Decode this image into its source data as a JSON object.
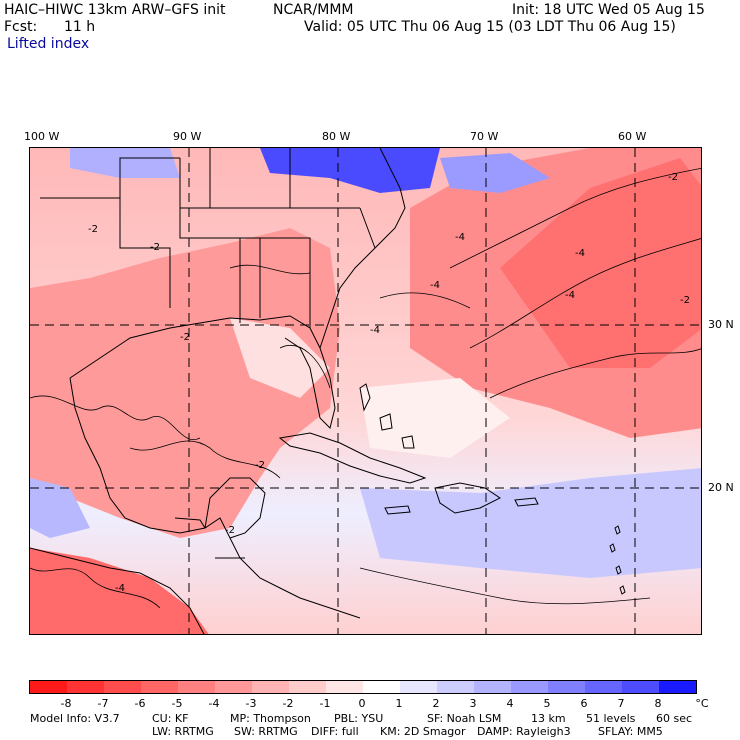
{
  "header": {
    "model": "HAIC–HIWC 13km ARW–GFS init",
    "org": "NCAR/MMM",
    "init": "Init: 18 UTC Wed 05 Aug 15",
    "fcst_label": "Fcst:",
    "fcst_value": "11 h",
    "valid": "Valid: 05 UTC Thu 06 Aug 15 (03 LDT Thu 06 Aug 15)",
    "field": "Lifted index"
  },
  "map": {
    "lon_labels": [
      "100 W",
      "90 W",
      "80 W",
      "70 W",
      "60 W"
    ],
    "lat_labels": [
      "30 N",
      "20 N"
    ],
    "contour_labels": [
      "-2",
      "-2",
      "-2",
      "-4",
      "-4",
      "-4",
      "-4",
      "-2",
      "-4",
      "-2",
      "-2",
      "-2",
      "-4"
    ],
    "colors": {
      "land_outline": "#000000",
      "grid_dash": "#000000"
    }
  },
  "colorbar": {
    "labels": [
      "-8",
      "-7",
      "-6",
      "-5",
      "-4",
      "-3",
      "-2",
      "-1",
      "0",
      "1",
      "2",
      "3",
      "4",
      "5",
      "6",
      "7",
      "8",
      "°C"
    ],
    "colors": [
      "#ff1a1a",
      "#ff3333",
      "#ff4d4d",
      "#ff6666",
      "#ff8080",
      "#ff9999",
      "#ffb3b3",
      "#ffcccc",
      "#ffe6e6",
      "#ffffff",
      "#e6e6ff",
      "#ccccff",
      "#b3b3ff",
      "#9999ff",
      "#8080ff",
      "#6666ff",
      "#4d4dff",
      "#1a1aff"
    ]
  },
  "footer": {
    "line1": [
      "Model Info: V3.7",
      "CU: KF",
      "MP: Thompson",
      "PBL: YSU",
      "SF: Noah LSM",
      "13 km",
      "51 levels",
      "60 sec"
    ],
    "line2": [
      "LW: RRTMG",
      "SW: RRTMG",
      "DIFF: full",
      "KM: 2D Smagor",
      "DAMP: Rayleigh3",
      "SFLAY: MM5"
    ]
  }
}
